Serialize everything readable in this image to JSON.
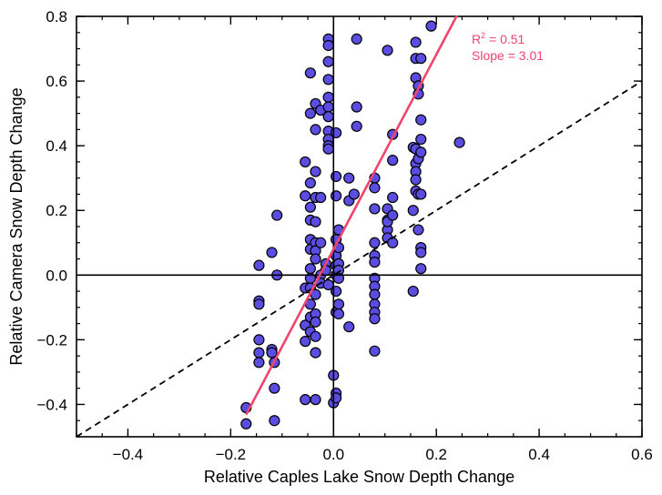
{
  "chart_data": {
    "type": "scatter",
    "title": "",
    "xlabel": "Relative Caples Lake Snow Depth Change",
    "ylabel": "Relative Camera Snow Depth Change",
    "xlim": [
      -0.5,
      0.6
    ],
    "ylim": [
      -0.5,
      0.8
    ],
    "xticks": [
      -0.4,
      -0.2,
      0.0,
      0.2,
      0.4,
      0.6
    ],
    "xtick_labels": [
      "−0.4",
      "−0.2",
      "0.0",
      "0.2",
      "0.4",
      "0.6"
    ],
    "yticks": [
      -0.4,
      -0.2,
      0.0,
      0.2,
      0.4,
      0.6,
      0.8
    ],
    "ytick_labels": [
      "−0.4",
      "−0.2",
      "0.0",
      "0.2",
      "0.4",
      "0.6",
      "0.8"
    ],
    "grid": false,
    "zero_lines": true,
    "colors": {
      "points": "#5b4de0",
      "point_edge": "#000000",
      "fit_line": "#f0456e",
      "one_to_one_line": "#000000"
    },
    "annotation": {
      "r2_prefix": "R",
      "r2_sup": "2",
      "r2_suffix": " = 0.51",
      "slope_text": "Slope = 3.01",
      "color": "#f0456e"
    },
    "fit_line": {
      "slope": 3.01,
      "intercept": 0.08,
      "x_range": [
        -0.17,
        0.24
      ]
    },
    "one_to_one_line": {
      "slope": 1.0,
      "intercept": 0.0,
      "style": "dashed"
    },
    "points": [
      [
        -0.17,
        -0.41
      ],
      [
        -0.17,
        -0.46
      ],
      [
        -0.145,
        0.03
      ],
      [
        -0.145,
        -0.08
      ],
      [
        -0.145,
        -0.09
      ],
      [
        -0.145,
        -0.2
      ],
      [
        -0.145,
        -0.24
      ],
      [
        -0.145,
        -0.27
      ],
      [
        -0.12,
        0.07
      ],
      [
        -0.12,
        -0.23
      ],
      [
        -0.12,
        -0.24
      ],
      [
        -0.115,
        -0.27
      ],
      [
        -0.115,
        -0.35
      ],
      [
        -0.115,
        -0.45
      ],
      [
        -0.11,
        0.185
      ],
      [
        -0.11,
        0.0
      ],
      [
        -0.055,
        0.35
      ],
      [
        -0.055,
        0.245
      ],
      [
        -0.055,
        -0.04
      ],
      [
        -0.055,
        -0.155
      ],
      [
        -0.055,
        -0.205
      ],
      [
        -0.055,
        -0.385
      ],
      [
        -0.045,
        0.625
      ],
      [
        -0.045,
        0.5
      ],
      [
        -0.045,
        0.285
      ],
      [
        -0.045,
        0.21
      ],
      [
        -0.045,
        0.17
      ],
      [
        -0.045,
        0.11
      ],
      [
        -0.045,
        0.08
      ],
      [
        -0.045,
        0.02
      ],
      [
        -0.045,
        -0.01
      ],
      [
        -0.045,
        -0.04
      ],
      [
        -0.045,
        -0.09
      ],
      [
        -0.045,
        -0.13
      ],
      [
        -0.045,
        -0.175
      ],
      [
        -0.035,
        0.53
      ],
      [
        -0.035,
        0.45
      ],
      [
        -0.035,
        0.32
      ],
      [
        -0.035,
        0.24
      ],
      [
        -0.035,
        0.165
      ],
      [
        -0.035,
        0.1
      ],
      [
        -0.035,
        0.075
      ],
      [
        -0.035,
        0.05
      ],
      [
        -0.035,
        -0.06
      ],
      [
        -0.035,
        -0.12
      ],
      [
        -0.035,
        -0.145
      ],
      [
        -0.035,
        -0.19
      ],
      [
        -0.035,
        -0.24
      ],
      [
        -0.035,
        -0.385
      ],
      [
        -0.025,
        0.51
      ],
      [
        -0.025,
        0.24
      ],
      [
        -0.025,
        0.1
      ],
      [
        -0.025,
        0.0
      ],
      [
        -0.025,
        -0.025
      ],
      [
        -0.015,
        0.035
      ],
      [
        -0.015,
        0.015
      ],
      [
        -0.01,
        -0.03
      ],
      [
        -0.01,
        0.73
      ],
      [
        -0.01,
        0.71
      ],
      [
        -0.01,
        0.66
      ],
      [
        -0.01,
        0.605
      ],
      [
        -0.01,
        0.55
      ],
      [
        -0.01,
        0.52
      ],
      [
        -0.01,
        0.49
      ],
      [
        -0.01,
        0.445
      ],
      [
        -0.01,
        0.42
      ],
      [
        -0.01,
        0.4
      ],
      [
        -0.01,
        0.39
      ],
      [
        0.0,
        -0.31
      ],
      [
        0.0,
        -0.395
      ],
      [
        0.005,
        0.44
      ],
      [
        0.005,
        0.305
      ],
      [
        0.005,
        0.245
      ],
      [
        0.005,
        0.11
      ],
      [
        0.005,
        0.06
      ],
      [
        0.005,
        0.03
      ],
      [
        0.005,
        0.0
      ],
      [
        0.005,
        -0.05
      ],
      [
        0.005,
        -0.115
      ],
      [
        0.005,
        -0.365
      ],
      [
        0.005,
        -0.38
      ],
      [
        0.01,
        0.14
      ],
      [
        0.01,
        0.085
      ],
      [
        0.01,
        0.035
      ],
      [
        0.01,
        0.015
      ],
      [
        0.01,
        -0.01
      ],
      [
        0.01,
        -0.09
      ],
      [
        0.01,
        -0.12
      ],
      [
        0.03,
        0.3
      ],
      [
        0.03,
        0.23
      ],
      [
        0.03,
        -0.16
      ],
      [
        0.04,
        0.25
      ],
      [
        0.045,
        0.73
      ],
      [
        0.045,
        0.52
      ],
      [
        0.045,
        0.46
      ],
      [
        0.08,
        0.3
      ],
      [
        0.08,
        0.27
      ],
      [
        0.08,
        0.205
      ],
      [
        0.08,
        0.1
      ],
      [
        0.08,
        0.06
      ],
      [
        0.08,
        0.04
      ],
      [
        0.08,
        -0.01
      ],
      [
        0.08,
        -0.035
      ],
      [
        0.08,
        -0.06
      ],
      [
        0.08,
        -0.09
      ],
      [
        0.08,
        -0.115
      ],
      [
        0.08,
        -0.135
      ],
      [
        0.08,
        -0.235
      ],
      [
        0.105,
        0.695
      ],
      [
        0.105,
        0.205
      ],
      [
        0.105,
        0.17
      ],
      [
        0.105,
        0.14
      ],
      [
        0.105,
        0.115
      ],
      [
        0.105,
        0.165
      ],
      [
        0.115,
        0.435
      ],
      [
        0.115,
        0.355
      ],
      [
        0.115,
        0.24
      ],
      [
        0.115,
        0.185
      ],
      [
        0.115,
        0.1
      ],
      [
        0.155,
        0.395
      ],
      [
        0.155,
        0.2
      ],
      [
        0.155,
        -0.05
      ],
      [
        0.16,
        0.72
      ],
      [
        0.16,
        0.67
      ],
      [
        0.16,
        0.61
      ],
      [
        0.16,
        0.39
      ],
      [
        0.16,
        0.345
      ],
      [
        0.16,
        0.32
      ],
      [
        0.16,
        0.295
      ],
      [
        0.16,
        0.26
      ],
      [
        0.165,
        0.585
      ],
      [
        0.165,
        0.56
      ],
      [
        0.165,
        0.36
      ],
      [
        0.165,
        0.25
      ],
      [
        0.165,
        0.14
      ],
      [
        0.17,
        0.67
      ],
      [
        0.17,
        0.48
      ],
      [
        0.17,
        0.42
      ],
      [
        0.17,
        0.38
      ],
      [
        0.17,
        0.25
      ],
      [
        0.17,
        0.085
      ],
      [
        0.17,
        0.07
      ],
      [
        0.17,
        0.02
      ],
      [
        0.19,
        0.77
      ],
      [
        0.245,
        0.41
      ]
    ]
  }
}
